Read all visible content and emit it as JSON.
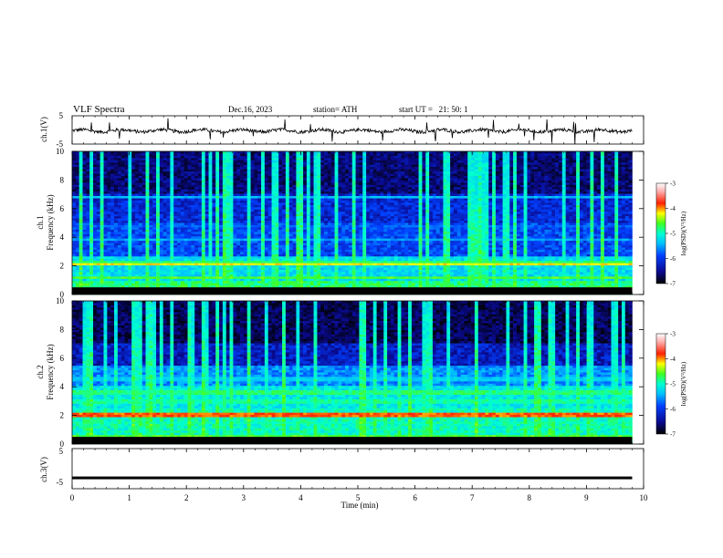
{
  "header": {
    "title": "VLF Spectra",
    "date": "Dec.16, 2023",
    "station": "station= ATH",
    "start": "start UT =   21: 50: 1"
  },
  "colors": {
    "ramp": [
      "#000000",
      "#0a0a80",
      "#0030ff",
      "#00aaff",
      "#00ffff",
      "#40ff40",
      "#ffff00",
      "#ff2000",
      "#ffffff"
    ],
    "trace": "#000000"
  },
  "chart_data": [
    {
      "type": "line",
      "panel": "ch1-waveform",
      "ylabel": "ch.1(V)",
      "yticks": [
        5,
        -5
      ],
      "ylim": [
        -5,
        5
      ],
      "xlim": [
        0,
        10
      ],
      "data_end_min": 9.8,
      "baseline_v": -0.3,
      "noise_amplitude_v": 1.2
    },
    {
      "type": "heatmap",
      "panel": "ch1-spectrogram",
      "ylabel": "ch.1\nFrequency (kHz)",
      "ylabel_line1": "ch.1",
      "ylabel_line2": "Frequency (kHz)",
      "yticks": [
        0,
        2,
        4,
        6,
        8,
        10
      ],
      "ylim": [
        0,
        10
      ],
      "xlim": [
        0,
        10
      ],
      "data_end_min": 9.8,
      "colorbar": {
        "label": "log(PSD)(V²/Hz)",
        "ticks": [
          -3,
          -4,
          -5,
          -6,
          -7
        ],
        "range": [
          -7,
          -3
        ]
      },
      "bands_khz": [
        {
          "f": 0.3,
          "level": -3.3
        },
        {
          "f": 1.2,
          "level": -4.6
        },
        {
          "f": 2.1,
          "level": -4.2
        },
        {
          "f": 2.3,
          "level": -4.8
        },
        {
          "f": 3.8,
          "level": -5.6
        },
        {
          "f": 4.8,
          "level": -5.9
        },
        {
          "f": 6.8,
          "level": -5.5
        }
      ]
    },
    {
      "type": "heatmap",
      "panel": "ch2-spectrogram",
      "ylabel": "ch.2\nFrequency (kHz)",
      "ylabel_line1": "ch.2",
      "ylabel_line2": "Frequency (kHz)",
      "yticks": [
        0,
        2,
        4,
        6,
        8,
        10
      ],
      "ylim": [
        0,
        10
      ],
      "xlim": [
        0,
        10
      ],
      "data_end_min": 9.8,
      "colorbar": {
        "label": "log(PSD)(V²/Hz)",
        "ticks": [
          -3,
          -4,
          -5,
          -6,
          -7
        ],
        "range": [
          -7,
          -3
        ]
      },
      "bands_khz": [
        {
          "f": 0.5,
          "level": -4.6
        },
        {
          "f": 1.5,
          "level": -5.0
        },
        {
          "f": 2.0,
          "level": -3.9
        },
        {
          "f": 3.0,
          "level": -4.9
        },
        {
          "f": 3.6,
          "level": -4.8
        },
        {
          "f": 4.5,
          "level": -5.4
        }
      ]
    },
    {
      "type": "line",
      "panel": "ch3-waveform",
      "ylabel": "ch.3(V)",
      "yticks": [
        5,
        -5
      ],
      "ylim": [
        -5,
        5
      ],
      "xlim": [
        0,
        10
      ],
      "data_end_min": 9.8,
      "baseline_v": -2.3
    }
  ],
  "xaxis": {
    "label": "Time (min)",
    "ticks": [
      "0",
      "1",
      "2",
      "3",
      "4",
      "5",
      "6",
      "7",
      "8",
      "9",
      "10"
    ]
  }
}
